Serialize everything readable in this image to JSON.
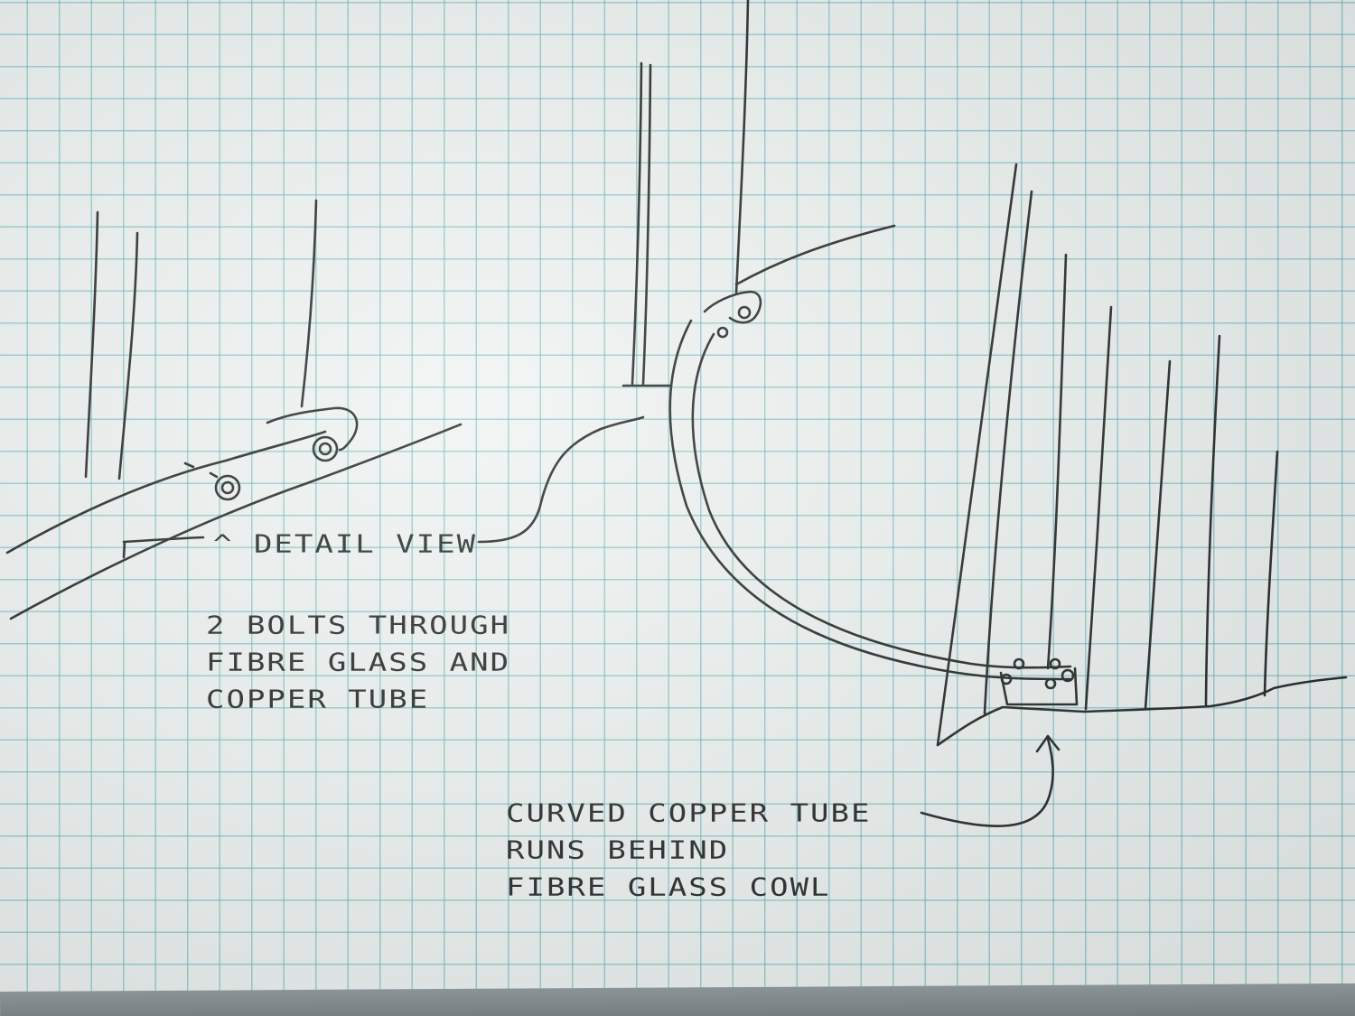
{
  "paper": {
    "background_color": "#eef2f0",
    "grid_color": "#46aaaf",
    "ink_color": "#141414"
  },
  "labels": {
    "detail_view": "^ DETAIL VIEW",
    "bolts_note": [
      "2 BOLTS THROUGH",
      "FIBRE GLASS AND",
      "COPPER TUBE"
    ],
    "tube_note": [
      "CURVED COPPER TUBE",
      "RUNS BEHIND",
      "FIBRE GLASS COWL"
    ]
  }
}
